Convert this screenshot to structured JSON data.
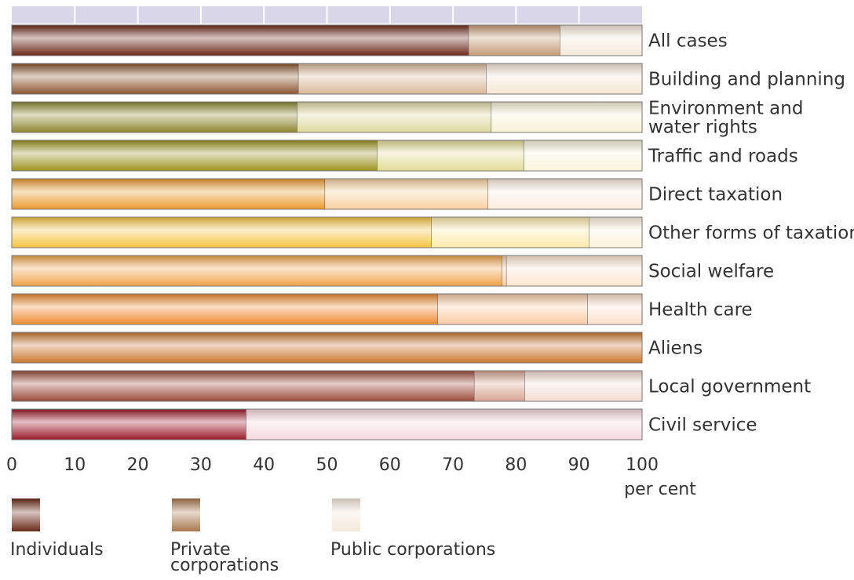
{
  "chart_data": {
    "type": "bar",
    "orientation": "horizontal",
    "stacked": true,
    "categories": [
      "All cases",
      "Building and planning",
      "Environment and water rights",
      "Traffic and roads",
      "Direct taxation",
      "Other forms of taxation",
      "Social welfare",
      "Health care",
      "Aliens",
      "Local government",
      "Civil service"
    ],
    "category_lines": [
      [
        "All cases"
      ],
      [
        "Building and planning"
      ],
      [
        "Environment and",
        "water rights"
      ],
      [
        "Traffic and roads"
      ],
      [
        "Direct taxation"
      ],
      [
        "Other forms of taxation"
      ],
      [
        "Social welfare"
      ],
      [
        "Health care"
      ],
      [
        "Aliens"
      ],
      [
        "Local government"
      ],
      [
        "Civil service"
      ]
    ],
    "series": [
      {
        "name": "Individuals",
        "values": [
          72.5,
          45.5,
          45.3,
          58,
          49.7,
          66.6,
          77.8,
          67.6,
          100,
          73.4,
          37.2
        ]
      },
      {
        "name": "Private corporations",
        "values": [
          14.5,
          29.8,
          30.8,
          23.3,
          25.9,
          25,
          0.7,
          23.8,
          0,
          8,
          0
        ]
      },
      {
        "name": "Public corporations",
        "values": [
          13,
          24.7,
          23.9,
          18.7,
          24.4,
          8.4,
          21.5,
          8.6,
          0,
          18.6,
          62.8
        ]
      }
    ],
    "xlim": [
      0,
      100
    ],
    "x_ticks": [
      "0",
      "10",
      "20",
      "30",
      "40",
      "50",
      "60",
      "70",
      "80",
      "90",
      "100"
    ],
    "xlabel": "per cent",
    "grid": true,
    "legend_position": "bottom",
    "legend_lines": [
      [
        "Individuals"
      ],
      [
        "Private",
        "corporations"
      ],
      [
        "Public corporations"
      ]
    ],
    "colors": {
      "grid_band": "#dad6ea",
      "row_palettes": [
        [
          "#6b2a1a",
          "#c49a76",
          "#f5e8da"
        ],
        [
          "#8a5630",
          "#d8b898",
          "#f6e6d6"
        ],
        [
          "#8c8630",
          "#ded8a0",
          "#f7f2d8"
        ],
        [
          "#9c9420",
          "#e2dc96",
          "#f8f4dc"
        ],
        [
          "#eb9a2e",
          "#f8d0a0",
          "#fdeee0"
        ],
        [
          "#f6c440",
          "#fce9a8",
          "#fdf4de"
        ],
        [
          "#efa34a",
          "#f6cea8",
          "#fde6d2"
        ],
        [
          "#ee8a30",
          "#f9caa4",
          "#fde0cc"
        ],
        [
          "#c8782e",
          "#deaa78",
          "#f2dcc4"
        ],
        [
          "#9a4a3a",
          "#d6a492",
          "#f2dcd2"
        ],
        [
          "#9a1a2a",
          "#e4b0b6",
          "#f4d8dc"
        ]
      ],
      "legend": [
        "#6b2a1a",
        "#a8784e",
        "#f5e8da"
      ]
    }
  }
}
